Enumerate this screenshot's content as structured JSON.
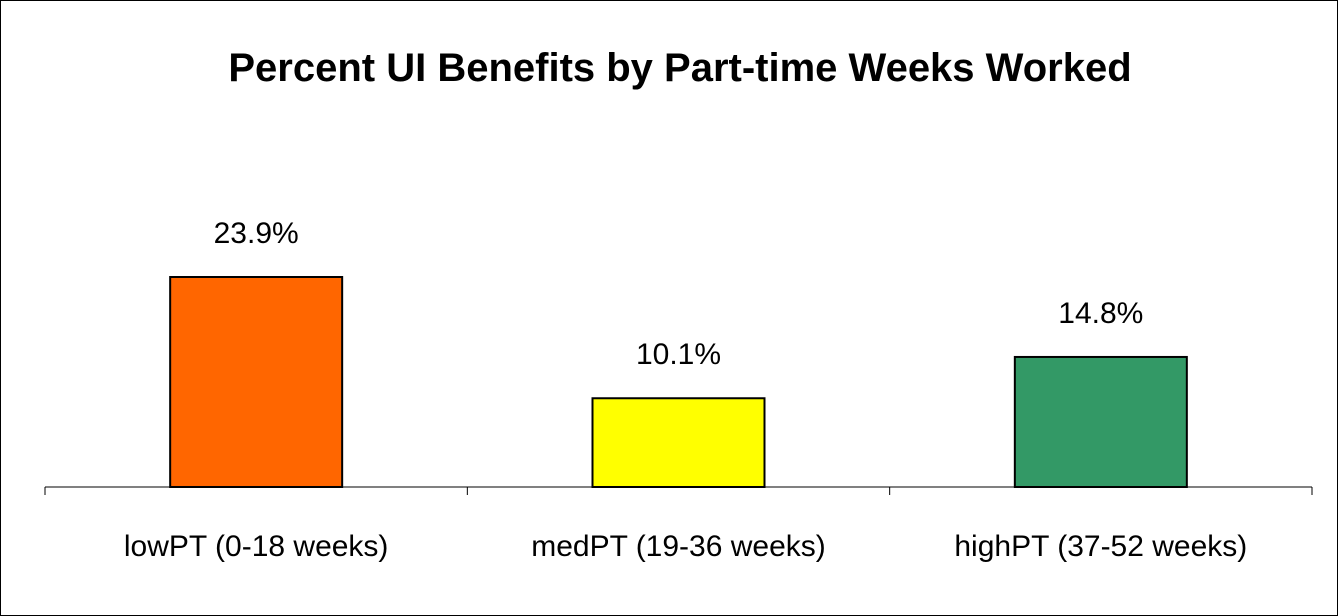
{
  "chart_data": {
    "type": "bar",
    "title": "Percent UI Benefits by Part-time Weeks Worked",
    "categories": [
      "lowPT (0-18 weeks)",
      "medPT (19-36 weeks)",
      "highPT (37-52 weeks)"
    ],
    "values": [
      23.9,
      10.1,
      14.8
    ],
    "value_labels": [
      "23.9%",
      "10.1%",
      "14.8%"
    ],
    "colors": [
      "#ff6600",
      "#ffff00",
      "#339966"
    ]
  }
}
